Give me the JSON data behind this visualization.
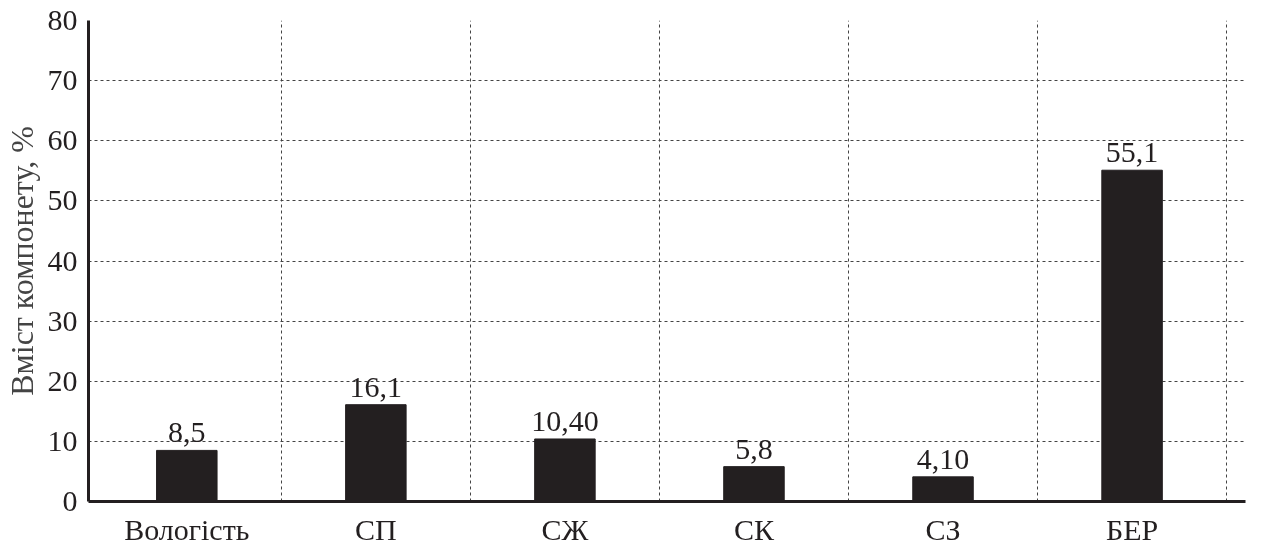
{
  "chart_data": {
    "type": "bar",
    "ylabel": "Вміст компонету, %",
    "categories": [
      "Вологість",
      "СП",
      "СЖ",
      "СК",
      "СЗ",
      "БЕР"
    ],
    "values": [
      8.5,
      16.1,
      10.4,
      5.8,
      4.1,
      55.1
    ],
    "value_labels": [
      "8,5",
      "16,1",
      "10,40",
      "5,8",
      "4,10",
      "55,1"
    ],
    "color": "#231f20",
    "ylim": [
      0,
      80
    ],
    "yticks": [
      0,
      10,
      20,
      30,
      40,
      50,
      60,
      70,
      80
    ],
    "grid": true
  }
}
